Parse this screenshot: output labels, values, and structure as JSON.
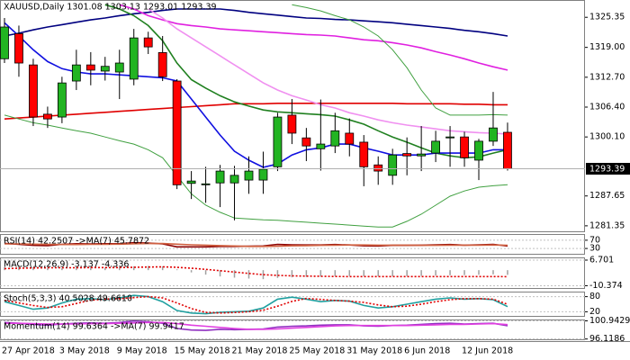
{
  "chart_data": [
    {
      "type": "candlestick",
      "title": "XAUUSD,Daily  1301.08 1303.13 1293.01 1293.39",
      "categories": [
        "27 Apr 2018",
        null,
        null,
        null,
        "3 May 2018",
        null,
        null,
        null,
        "9 May 2018",
        null,
        null,
        null,
        "15 May 2018",
        null,
        null,
        null,
        "21 May 2018",
        null,
        null,
        null,
        "25 May 2018",
        null,
        null,
        null,
        "31 May 2018",
        null,
        null,
        null,
        "6 Jun 2018",
        null,
        null,
        null,
        "12 Jun 2018",
        null,
        null,
        null
      ],
      "open": [
        1316.6,
        1321.9,
        1315.3,
        1304.9,
        1304.3,
        1311.9,
        1315.3,
        1314.0,
        1313.8,
        1312.3,
        1321.0,
        1317.9,
        1311.9,
        1290.3,
        1290.0,
        1290.4,
        1290.4,
        1291.0,
        1291.0,
        1293.8,
        1304.7,
        1299.9,
        1297.6,
        1298.2,
        1300.9,
        1299.0,
        1294.2,
        1292.0,
        1296.6,
        1296.1,
        1296.7,
        1299.9,
        1300.1,
        1295.2,
        1299.2,
        1301.08
      ],
      "high": [
        1325.2,
        1323.6,
        1316.6,
        1306.5,
        1312.8,
        1318.5,
        1318.0,
        1317.0,
        1318.5,
        1322.9,
        1322.3,
        1321.4,
        1312.3,
        1292.9,
        1293.8,
        1294.2,
        1294.0,
        1296.0,
        1297.0,
        1305.2,
        1308.1,
        1302.0,
        1308.0,
        1305.2,
        1304.0,
        1300.5,
        1296.0,
        1297.6,
        1300.0,
        1302.4,
        1301.4,
        1302.4,
        1301.2,
        1299.7,
        1309.6,
        1303.13
      ],
      "low": [
        1315.7,
        1312.8,
        1302.4,
        1302.0,
        1303.0,
        1310.0,
        1311.0,
        1312.0,
        1308.1,
        1311.0,
        1317.6,
        1311.9,
        1289.1,
        1287.0,
        1286.2,
        1285.3,
        1282.5,
        1288.1,
        1288.1,
        1292.9,
        1298.6,
        1295.0,
        1293.0,
        1296.7,
        1296.0,
        1289.7,
        1290.0,
        1290.0,
        1292.0,
        1292.9,
        1294.8,
        1293.8,
        1293.8,
        1291.0,
        1298.2,
        1293.01
      ],
      "close": [
        1323.3,
        1315.7,
        1304.3,
        1303.9,
        1311.5,
        1315.3,
        1314.2,
        1315.0,
        1315.7,
        1321.0,
        1319.1,
        1312.8,
        1290.0,
        1290.8,
        1290.2,
        1292.9,
        1292.0,
        1292.9,
        1293.3,
        1304.3,
        1300.9,
        1298.2,
        1298.6,
        1301.4,
        1298.6,
        1293.8,
        1292.9,
        1296.3,
        1296.1,
        1296.5,
        1299.2,
        1300.1,
        1295.7,
        1299.2,
        1302.0,
        1293.39
      ],
      "up_color": "#22b422",
      "down_color": "#ff0000",
      "last_price": 1293.39,
      "ylim": [
        1280,
        1329
      ],
      "yticks": [
        {
          "value": 1281.35,
          "label": "1281.35"
        },
        {
          "value": 1287.65,
          "label": "1287.65"
        },
        {
          "value": 1300.1,
          "label": "1300.10"
        },
        {
          "value": 1306.4,
          "label": "1306.40"
        },
        {
          "value": 1312.7,
          "label": "1312.70"
        },
        {
          "value": 1319,
          "label": "1319.00"
        },
        1325.35
      ],
      "series": [
        {
          "color": "#000080",
          "values": [
            1321.4,
            1322.0,
            1322.7,
            1323.3,
            1323.8,
            1324.3,
            1324.8,
            1325.2,
            1325.7,
            1326.1,
            1326.4,
            1326.8,
            1327.1,
            1327.1,
            1327.1,
            1327.1,
            1326.8,
            1326.4,
            1326.1,
            1325.8,
            1325.5,
            1325.2,
            1325.1,
            1324.9,
            1324.8,
            1324.6,
            1324.4,
            1324.2,
            1323.9,
            1323.6,
            1323.3,
            1323.0,
            1322.6,
            1322.3,
            1321.9,
            1321.4
          ]
        },
        {
          "color": "#e020e0",
          "values": [
            null,
            null,
            null,
            null,
            null,
            null,
            null,
            null,
            1328.0,
            1327.1,
            1325.7,
            1324.8,
            1324.0,
            1323.6,
            1323.3,
            1322.9,
            1322.7,
            1322.5,
            1322.3,
            1322.1,
            1321.9,
            1321.7,
            1321.6,
            1321.4,
            1321.0,
            1320.6,
            1320.4,
            1320.0,
            1319.5,
            1318.9,
            1318.1,
            1317.4,
            1316.6,
            1315.7,
            1314.9,
            1314.2
          ]
        },
        {
          "color": "#e00000",
          "values": [
            1303.9,
            1304.1,
            1304.3,
            1304.5,
            1304.7,
            1304.9,
            1305.1,
            1305.3,
            1305.5,
            1305.7,
            1305.9,
            1306.1,
            1306.3,
            1306.5,
            1306.7,
            1306.9,
            1307.1,
            1307.1,
            1307.1,
            1307.2,
            1307.2,
            1307.2,
            1307.2,
            1307.2,
            1307.2,
            1307.2,
            1307.2,
            1307.2,
            1307.1,
            1307.1,
            1307.1,
            1307.1,
            1307.0,
            1307.0,
            1306.9,
            1306.9
          ]
        },
        {
          "color": "#f090f0",
          "values": [
            null,
            null,
            null,
            null,
            null,
            null,
            null,
            null,
            null,
            null,
            1327.1,
            1325.2,
            1322.9,
            1321.0,
            1319.1,
            1317.2,
            1315.3,
            1313.4,
            1311.5,
            1310.0,
            1308.8,
            1307.9,
            1306.9,
            1306.2,
            1305.2,
            1304.5,
            1303.7,
            1303.1,
            1302.6,
            1302.2,
            1301.8,
            1301.4,
            1301.2,
            1301.0,
            1300.9,
            1300.7
          ]
        },
        {
          "color": "#208020",
          "values": [
            null,
            null,
            null,
            null,
            null,
            null,
            null,
            1328.0,
            1327.1,
            1325.7,
            1323.6,
            1320.4,
            1315.7,
            1312.2,
            1310.4,
            1308.8,
            1307.5,
            1306.6,
            1305.8,
            1305.4,
            1305.2,
            1305.0,
            1304.8,
            1304.5,
            1303.7,
            1302.8,
            1301.4,
            1300.1,
            1299.0,
            1297.8,
            1296.7,
            1296.1,
            1295.7,
            1295.9,
            1296.7,
            1297.4
          ]
        },
        {
          "color": "#1010e0",
          "values": [
            1324.2,
            1321.4,
            1318.5,
            1316.0,
            1314.5,
            1313.8,
            1313.4,
            1313.4,
            1313.2,
            1313.0,
            1312.8,
            1312.6,
            1311.9,
            1308.1,
            1304.3,
            1300.5,
            1297.1,
            1295.2,
            1293.7,
            1294.4,
            1296.3,
            1297.4,
            1297.8,
            1298.6,
            1298.6,
            1297.8,
            1297.1,
            1296.3,
            1296.3,
            1296.3,
            1296.7,
            1296.7,
            1296.7,
            1296.7,
            1297.4,
            1297.4
          ]
        },
        {
          "color": "#40a040",
          "thin": true,
          "values": [
            null,
            null,
            null,
            null,
            null,
            null,
            null,
            null,
            null,
            null,
            null,
            null,
            null,
            null,
            null,
            null,
            null,
            null,
            null,
            null,
            1328.0,
            1327.4,
            1326.7,
            1325.7,
            1324.8,
            1323.3,
            1321.4,
            1318.5,
            1314.7,
            1310.0,
            1306.2,
            1304.7,
            1304.7,
            1304.7,
            1304.8,
            1304.7
          ]
        },
        {
          "color": "#40a040",
          "thin": true,
          "values": [
            1304.7,
            1303.9,
            1303.1,
            1302.6,
            1302.0,
            1301.4,
            1300.9,
            1300.1,
            1299.3,
            1298.6,
            1297.4,
            1295.7,
            1291.9,
            1288.1,
            1285.7,
            1284.2,
            1283.0,
            1282.8,
            1282.6,
            1282.5,
            1282.3,
            1282.1,
            1281.9,
            1281.7,
            1281.5,
            1281.3,
            1281.1,
            1281.1,
            1282.3,
            1283.8,
            1285.7,
            1287.6,
            1288.7,
            1289.5,
            1289.8,
            1290.0
          ]
        }
      ]
    },
    {
      "type": "line",
      "title": "RSI(14) 42.2507  ->MA(7) 45.7872",
      "ylim": [
        0,
        100
      ],
      "yticks": [
        30,
        70
      ],
      "series": [
        {
          "color": "#8b0000",
          "values": [
            55,
            50,
            45,
            44,
            50,
            53,
            52,
            53,
            53,
            58,
            56,
            52,
            38,
            38,
            38,
            40,
            40,
            41,
            42,
            50,
            48,
            47,
            47,
            49,
            47,
            43,
            42,
            45,
            45,
            46,
            48,
            49,
            46,
            48,
            50,
            42.2507
          ]
        },
        {
          "color": "#d06040",
          "values": [
            52,
            52,
            51,
            50,
            49,
            49,
            50,
            50,
            51,
            53,
            54,
            54,
            51,
            48,
            46,
            44,
            42,
            40,
            40,
            41,
            43,
            44,
            45,
            46,
            47,
            47,
            46,
            46,
            46,
            45,
            45,
            46,
            46,
            46,
            47,
            45.7872
          ]
        }
      ]
    },
    {
      "type": "line",
      "title": "MACD(12,26,9) -3.137 -4.336",
      "ylim": [
        -12.5,
        8.5
      ],
      "yticks": [
        -10.374,
        6.701
      ],
      "series": [
        {
          "color": "#a0a0a0",
          "histogram": true,
          "values": [
            2,
            2.5,
            2,
            1.5,
            1.5,
            1.8,
            1.8,
            1.8,
            1.9,
            2.6,
            2.8,
            2.6,
            0.5,
            -1.5,
            -3,
            -4.2,
            -5,
            -5.6,
            -6,
            -5.2,
            -4.8,
            -4.5,
            -4.3,
            -4,
            -3.9,
            -4,
            -4.1,
            -4.1,
            -4,
            -3.8,
            -3.6,
            -3.4,
            -3.3,
            -3.1,
            -2.8,
            -3.137
          ]
        },
        {
          "color": "#e00000",
          "dash": true,
          "values": [
            1,
            1.3,
            1.5,
            1.6,
            1.6,
            1.6,
            1.7,
            1.7,
            1.7,
            1.9,
            2.1,
            2.2,
            1.9,
            1.3,
            0.5,
            -0.4,
            -1.3,
            -2.2,
            -3,
            -3.5,
            -3.8,
            -4,
            -4.1,
            -4.2,
            -4.3,
            -4.3,
            -4.3,
            -4.3,
            -4.3,
            -4.3,
            -4.3,
            -4.3,
            -4.3,
            -4.3,
            -4.3,
            -4.336
          ]
        }
      ]
    },
    {
      "type": "line",
      "title": "Stoch(5,3,3) 40.5028 49.6610",
      "ylim": [
        0,
        100
      ],
      "yticks": [
        20,
        80
      ],
      "series": [
        {
          "color": "#20a0a0",
          "values": [
            60,
            45,
            30,
            35,
            55,
            70,
            72,
            68,
            75,
            85,
            80,
            60,
            25,
            15,
            12,
            18,
            20,
            22,
            35,
            70,
            78,
            70,
            60,
            65,
            62,
            45,
            35,
            40,
            50,
            60,
            70,
            75,
            70,
            72,
            68,
            40.5028
          ]
        },
        {
          "color": "#e00000",
          "dash": true,
          "values": [
            65,
            55,
            45,
            37,
            40,
            53,
            66,
            70,
            72,
            76,
            80,
            75,
            55,
            33,
            17,
            15,
            17,
            20,
            26,
            42,
            61,
            73,
            69,
            65,
            62,
            57,
            47,
            40,
            42,
            50,
            60,
            68,
            72,
            72,
            70,
            49.661
          ]
        }
      ]
    },
    {
      "type": "line",
      "title": "Momentum(14) 99.6364  ->MA(7) 99.9417",
      "ylim": [
        95.8,
        101.3
      ],
      "yticks": [
        96.1186,
        100.9429
      ],
      "series": [
        {
          "color": "#9030c0",
          "values": [
            100.5,
            100.3,
            100,
            99.8,
            100.1,
            100.3,
            100.4,
            100.3,
            100.5,
            100.9,
            100.7,
            100.3,
            98.9,
            98.5,
            98.4,
            98.7,
            98.6,
            98.7,
            98.8,
            99.3,
            99.5,
            99.6,
            99.8,
            99.9,
            99.9,
            99.6,
            99.5,
            99.7,
            99.8,
            100,
            100.2,
            100.3,
            100.1,
            100.2,
            100.3,
            99.6364
          ]
        },
        {
          "color": "#e040e0",
          "values": [
            100.3,
            100.3,
            100.2,
            100.1,
            100.1,
            100.1,
            100.2,
            100.2,
            100.3,
            100.4,
            100.5,
            100.5,
            100.2,
            99.8,
            99.5,
            99.2,
            98.9,
            98.7,
            98.7,
            98.8,
            99,
            99.2,
            99.4,
            99.6,
            99.7,
            99.7,
            99.7,
            99.7,
            99.7,
            99.8,
            99.9,
            100,
            100,
            100.1,
            100.2,
            99.9417
          ]
        }
      ]
    }
  ]
}
